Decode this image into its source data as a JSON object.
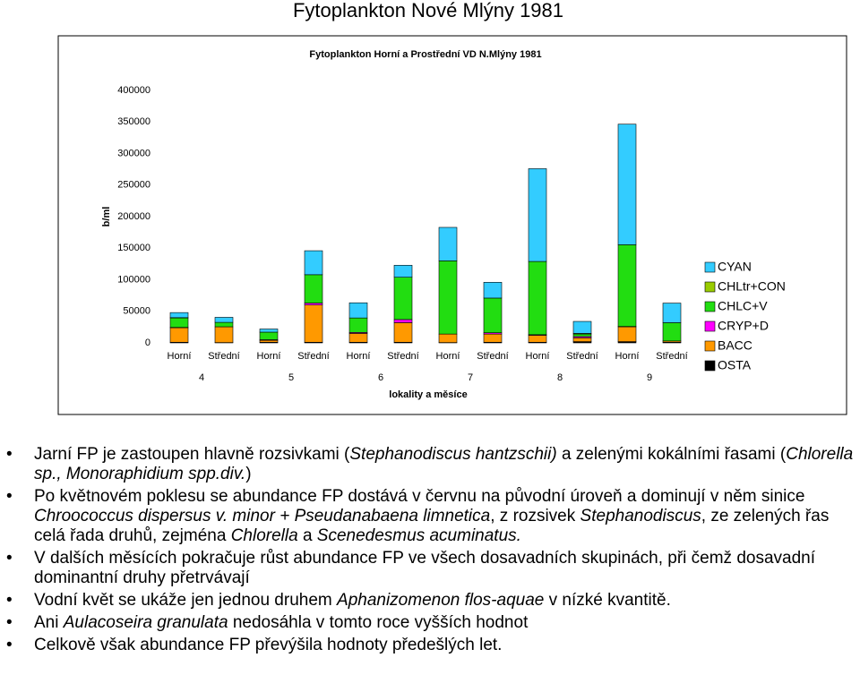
{
  "slide_title": "Fytoplankton Nové Mlýny 1981",
  "chart_data": {
    "type": "stacked_bar",
    "title": "Fytoplankton Horní a Prostřední VD N.Mlýny 1981",
    "x_label": "lokality a měsíce",
    "y_label": "b/ml",
    "categories": [
      "Horní",
      "Střední",
      "Horní",
      "Střední",
      "Horní",
      "Střední",
      "Horní",
      "Střední",
      "Horní",
      "Střední",
      "Horní",
      "Střední"
    ],
    "groups": [
      "4",
      "5",
      "6",
      "7",
      "8",
      "9"
    ],
    "series": [
      {
        "name": "OSTA",
        "color": "#000000",
        "values": [
          1000,
          500,
          1000,
          1000,
          1000,
          1000,
          500,
          1000,
          1000,
          2000,
          2000,
          1000
        ]
      },
      {
        "name": "BACC",
        "color": "#ff9900",
        "values": [
          23000,
          25000,
          3000,
          59000,
          14000,
          31000,
          13500,
          13000,
          11000,
          6000,
          23500,
          2000
        ]
      },
      {
        "name": "CRYP+D",
        "color": "#ff00ff",
        "values": [
          500,
          0,
          1000,
          3000,
          1500,
          5000,
          0,
          2000,
          1000,
          2000,
          500,
          0
        ]
      },
      {
        "name": "CHLC+V",
        "color": "#22dd11",
        "values": [
          15000,
          7000,
          12000,
          45000,
          23000,
          67000,
          116000,
          55000,
          116000,
          4000,
          129500,
          29000
        ]
      },
      {
        "name": "CHLtr+CON",
        "color": "#99cc00",
        "values": [
          500,
          0,
          0,
          0,
          0,
          0,
          0,
          0,
          0,
          1000,
          0,
          0
        ]
      },
      {
        "name": "CYAN",
        "color": "#33ccff",
        "values": [
          8000,
          8000,
          5000,
          38000,
          24000,
          19000,
          53000,
          25000,
          147000,
          19000,
          191000,
          31000
        ]
      }
    ],
    "ylim": [
      0,
      400000
    ],
    "yticks": [
      0,
      50000,
      100000,
      150000,
      200000,
      250000,
      300000,
      350000,
      400000
    ],
    "grid": false
  },
  "bullets": [
    [
      "Jarní FP je zastoupen hlavně rozsivkami (",
      "Stephanodiscus hantzschii)",
      " a zelenými kokálními řasami (",
      "Chlorella sp., Monoraphidium spp.div.",
      ")"
    ],
    [
      "Po květnovém poklesu se abundance FP dostává v červnu na původní úroveň a dominují v něm sinice ",
      "Chroococcus dispersus v. minor + Pseudanabaena limnetica",
      ", z rozsivek ",
      "Stephanodiscus",
      ", ze zelených řas celá řada druhů, zejména ",
      "Chlorella",
      " a ",
      "Scenedesmus acuminatus."
    ],
    [
      "V dalších měsících pokračuje růst abundance FP ve všech dosavadních skupinách, při čemž dosavadní dominantní druhy přetrvávají"
    ],
    [
      "Vodní květ se ukáže jen jednou druhem ",
      "Aphanizomenon flos-aquae",
      " v nízké kvantitě."
    ],
    [
      "Ani ",
      "Aulacoseira granulata",
      " nedosáhla v tomto roce vyšších hodnot"
    ],
    [
      "Celkově však abundance FP převýšila hodnoty předešlých let."
    ]
  ]
}
